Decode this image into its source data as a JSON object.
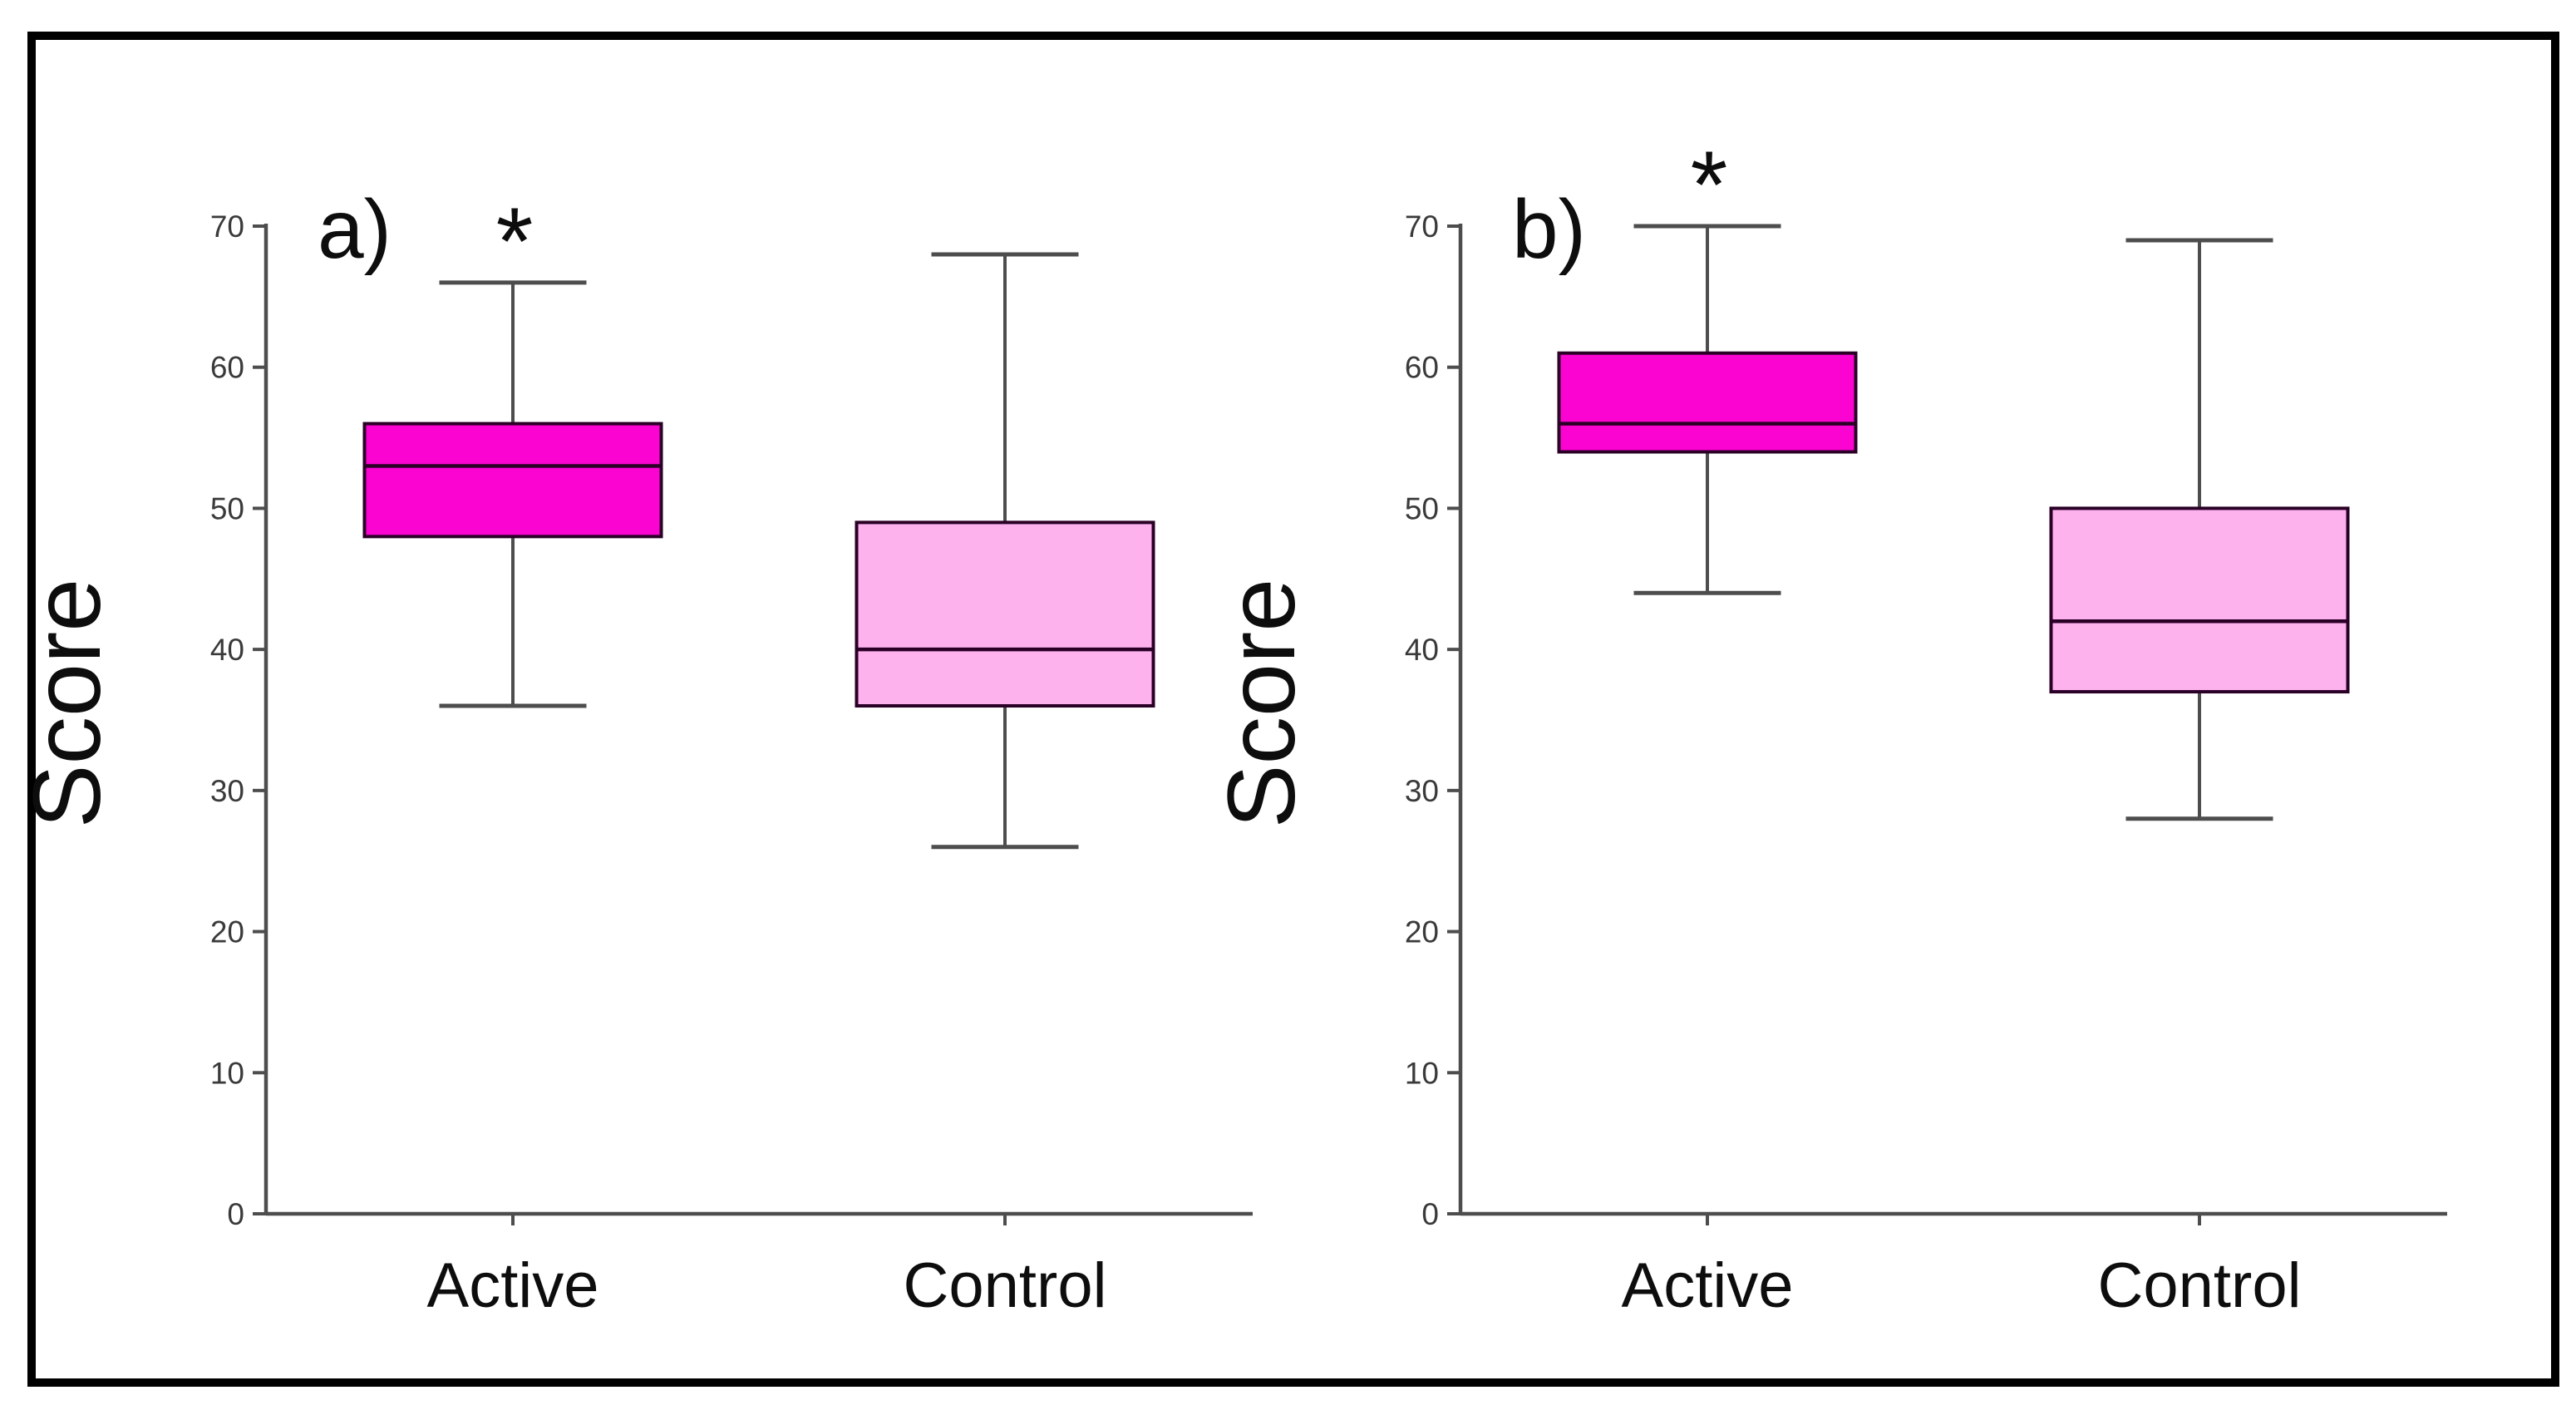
{
  "figure": {
    "ylabel": "Score",
    "panel_labels": [
      "a)",
      "b)"
    ],
    "categories": [
      "Active",
      "Control"
    ],
    "significance_marker": "*"
  },
  "colors": {
    "background": "#ffffff",
    "frame": "#000000",
    "active_fill": "#fb04d2",
    "control_fill": "#fdb2ee",
    "box_stroke": "#2a0026",
    "axis_stroke": "#4d4d4d",
    "tick_label_color": "#3a3a3a",
    "label_color": "#0d0d0d"
  },
  "chart_data": [
    {
      "type": "box",
      "panel_label": "a)",
      "ylabel": "Score",
      "categories": [
        "Active",
        "Control"
      ],
      "yticks": [
        0,
        10,
        20,
        30,
        40,
        50,
        60,
        70
      ],
      "ylim": [
        0,
        70
      ],
      "grid": false,
      "legend": "none",
      "annotations": [
        {
          "text": "*",
          "category": "Active",
          "position": "above-upper-whisker"
        }
      ],
      "series": [
        {
          "name": "Active",
          "whisker_low": 36,
          "q1": 48,
          "median": 53,
          "q3": 56,
          "whisker_high": 66,
          "fill": "#fb04d2",
          "significant": true
        },
        {
          "name": "Control",
          "whisker_low": 26,
          "q1": 36,
          "median": 40,
          "q3": 49,
          "whisker_high": 68,
          "fill": "#fdb2ee",
          "significant": false
        }
      ]
    },
    {
      "type": "box",
      "panel_label": "b)",
      "ylabel": "Score",
      "categories": [
        "Active",
        "Control"
      ],
      "yticks": [
        0,
        10,
        20,
        30,
        40,
        50,
        60,
        70
      ],
      "ylim": [
        0,
        70
      ],
      "grid": false,
      "legend": "none",
      "annotations": [
        {
          "text": "*",
          "category": "Active",
          "position": "above-upper-whisker"
        }
      ],
      "series": [
        {
          "name": "Active",
          "whisker_low": 44,
          "q1": 54,
          "median": 56,
          "q3": 61,
          "whisker_high": 70,
          "fill": "#fb04d2",
          "significant": true
        },
        {
          "name": "Control",
          "whisker_low": 28,
          "q1": 37,
          "median": 42,
          "q3": 50,
          "whisker_high": 69,
          "fill": "#fdb2ee",
          "significant": false
        }
      ]
    }
  ]
}
